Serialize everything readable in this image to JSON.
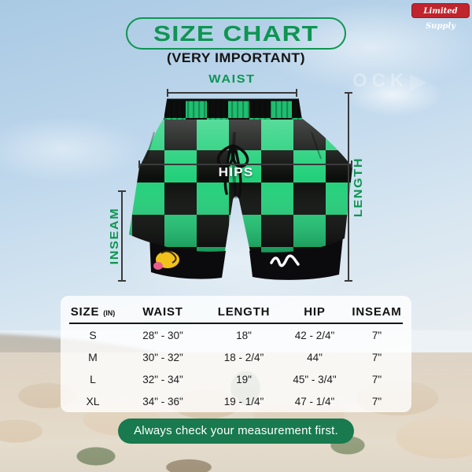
{
  "badge": {
    "label": "Limited Supply",
    "bg": "#c0242c"
  },
  "header": {
    "title": "SIZE CHART",
    "subtitle": "(VERY IMPORTANT)",
    "accent": "#0e9552"
  },
  "watermark": {
    "text": "OCK",
    "play_glyph": "▶"
  },
  "diagram": {
    "waist": "WAIST",
    "hips": "HIPS",
    "length": "LENGTH",
    "inseam": "INSEAM",
    "shorts_colors": {
      "green": "#22d07a",
      "black": "#0c0e0c"
    }
  },
  "table": {
    "headers": [
      "SIZE",
      "WAIST",
      "LENGTH",
      "HIP",
      "INSEAM"
    ],
    "size_unit": "(IN)",
    "rows": [
      {
        "size": "S",
        "waist": "28\" - 30\"",
        "length": "18\"",
        "hip": "42 - 2/4\"",
        "inseam": "7\""
      },
      {
        "size": "M",
        "waist": "30\" - 32\"",
        "length": "18 - 2/4\"",
        "hip": "44\"",
        "inseam": "7\""
      },
      {
        "size": "L",
        "waist": "32\" - 34\"",
        "length": "19\"",
        "hip": "45\" - 3/4\"",
        "inseam": "7\""
      },
      {
        "size": "XL",
        "waist": "34\" - 36\"",
        "length": "19 - 1/4\"",
        "hip": "47 - 1/4\"",
        "inseam": "7\""
      }
    ]
  },
  "footer": {
    "note": "Always check your measurement first.",
    "bg": "#187a4e"
  }
}
